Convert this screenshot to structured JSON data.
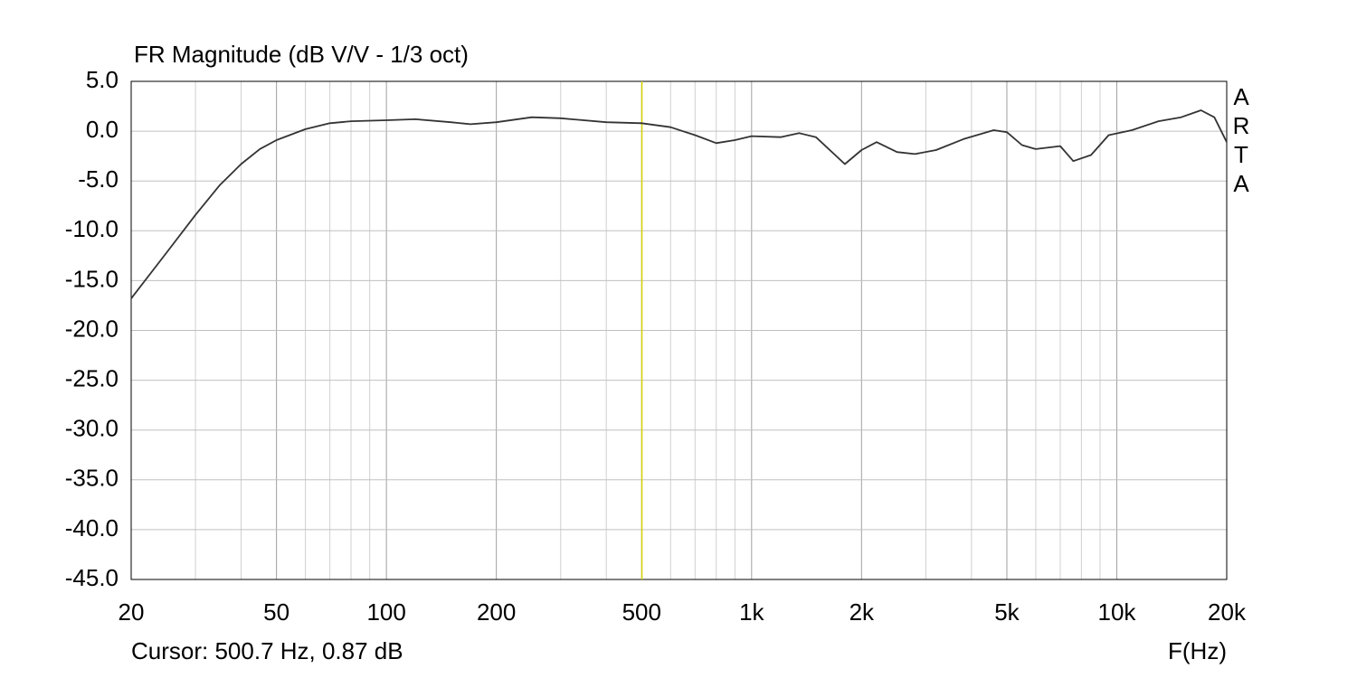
{
  "chart_data": {
    "type": "line",
    "title": "FR Magnitude (dB V/V - 1/3 oct)",
    "x_label": "F(Hz)",
    "watermark": "ARTA",
    "x_log": true,
    "grid": true,
    "xlim": [
      20,
      20000
    ],
    "xticks": [
      20,
      50,
      100,
      200,
      500,
      {
        "value": 1000,
        "label": "1k"
      },
      {
        "value": 2000,
        "label": "2k"
      },
      {
        "value": 5000,
        "label": "5k"
      },
      {
        "value": 10000,
        "label": "10k"
      },
      {
        "value": 20000,
        "label": "20k"
      }
    ],
    "x_minor_ticks": [
      30,
      40,
      60,
      70,
      80,
      90,
      300,
      400,
      600,
      700,
      800,
      900,
      3000,
      4000,
      6000,
      7000,
      8000,
      9000
    ],
    "ylim": [
      -45,
      5
    ],
    "yticks": [
      {
        "value": 5,
        "label": "5.0"
      },
      {
        "value": 0,
        "label": "0.0"
      },
      {
        "value": -5,
        "label": "-5.0"
      },
      {
        "value": -10,
        "label": "-10.0"
      },
      {
        "value": -15,
        "label": "-15.0"
      },
      {
        "value": -20,
        "label": "-20.0"
      },
      {
        "value": -25,
        "label": "-25.0"
      },
      {
        "value": -30,
        "label": "-30.0"
      },
      {
        "value": -35,
        "label": "-35.0"
      },
      {
        "value": -40,
        "label": "-40.0"
      },
      {
        "value": -45,
        "label": "-45.0"
      }
    ],
    "x": [
      20,
      25,
      30,
      35,
      40,
      45,
      50,
      60,
      70,
      80,
      100,
      120,
      150,
      170,
      200,
      250,
      300,
      400,
      500,
      600,
      700,
      800,
      900,
      1000,
      1200,
      1350,
      1500,
      1800,
      2000,
      2200,
      2500,
      2800,
      3200,
      3800,
      4600,
      5000,
      5500,
      6000,
      7000,
      7600,
      8500,
      9500,
      11000,
      13000,
      15000,
      17000,
      18500,
      20000
    ],
    "series": [
      {
        "color": "#333333",
        "values": [
          -16.8,
          -12.2,
          -8.4,
          -5.4,
          -3.3,
          -1.8,
          -0.9,
          0.2,
          0.8,
          1.0,
          1.1,
          1.2,
          0.9,
          0.7,
          0.9,
          1.4,
          1.3,
          0.9,
          0.8,
          0.4,
          -0.4,
          -1.2,
          -0.9,
          -0.5,
          -0.6,
          -0.2,
          -0.6,
          -3.3,
          -1.9,
          -1.1,
          -2.1,
          -2.3,
          -1.9,
          -0.8,
          0.1,
          -0.1,
          -1.4,
          -1.8,
          -1.5,
          -3.0,
          -2.4,
          -0.4,
          0.1,
          1.0,
          1.4,
          2.1,
          1.4,
          -1.1
        ]
      }
    ],
    "cursor": {
      "x": 500.7,
      "y": 0.87,
      "color": "#d4d400",
      "label": "Cursor: 500.7 Hz, 0.87 dB"
    }
  }
}
